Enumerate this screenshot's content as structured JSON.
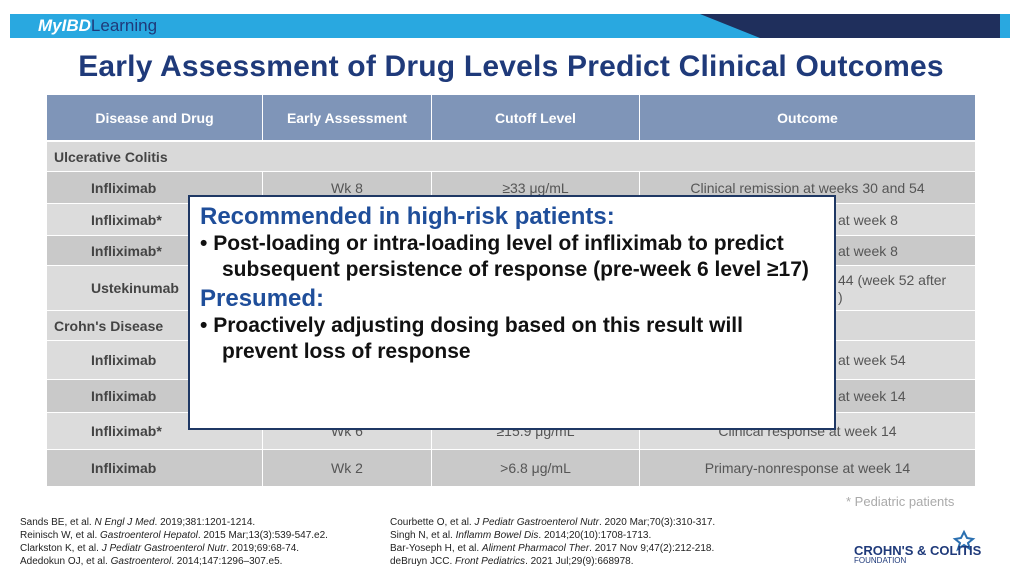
{
  "header": {
    "logo_a": "MyIBD",
    "logo_b": "Learning"
  },
  "title": "Early Assessment of Drug Levels Predict Clinical Outcomes",
  "table": {
    "columns": [
      "Disease and Drug",
      "Early Assessment",
      "Cutoff Level",
      "Outcome"
    ],
    "rows": [
      {
        "section": "Ulcerative Colitis"
      },
      {
        "drug": "Infliximab",
        "assessment": "Wk 8",
        "cutoff": "≥33 μg/mL",
        "outcome": "Clinical remission at weeks 30 and 54"
      },
      {
        "drug": "Infliximab*",
        "fragment": "at week 8"
      },
      {
        "drug": "Infliximab*",
        "fragment": "at week 8"
      },
      {
        "drug": "Ustekinumab",
        "fragment": "44 (week 52 after\n)"
      },
      {
        "section": "Crohn's Disease"
      },
      {
        "drug": "Infliximab",
        "fragment": "at week 54"
      },
      {
        "drug": "Infliximab",
        "fragment": "at week 14"
      },
      {
        "drug": "Infliximab*",
        "assessment": "Wk 6",
        "cutoff": "≥15.9 μg/mL",
        "outcome": "Clinical response at week 14"
      },
      {
        "drug": "Infliximab",
        "assessment": "Wk 2",
        "cutoff": ">6.8 μg/mL",
        "outcome": "Primary-nonresponse at week 14"
      }
    ]
  },
  "overlay": {
    "heading1": "Recommended in high-risk patients:",
    "bullets1": [
      "Post-loading or intra-loading level of infliximab to predict subsequent persistence of response (pre-week 6 level ≥17)"
    ],
    "heading2": "Presumed:",
    "bullets2": [
      "Proactively adjusting dosing based on this result will prevent loss of response"
    ]
  },
  "footnote": "* Pediatric patients",
  "references_left": [
    [
      "Sands BE, et al. ",
      "N Engl J Med",
      ". 2019;381:1201-1214."
    ],
    [
      "Reinisch W, et al. ",
      "Gastroenterol Hepatol",
      ". 2015 Mar;13(3):539-547.e2."
    ],
    [
      "Clarkston K, et al. ",
      "J Pediatr Gastroenterol Nutr",
      ". 2019;69:68-74."
    ],
    [
      "Adedokun OJ, et al. ",
      "Gastroenterol",
      ". 2014;147:1296–307.e5."
    ]
  ],
  "references_right": [
    [
      "Courbette O, et al. ",
      "J Pediatr Gastroenterol Nutr",
      ". 2020 Mar;70(3):310-317."
    ],
    [
      "Singh N, et al. ",
      "Inflamm Bowel Dis",
      ". 2014;20(10):1708-1713."
    ],
    [
      "Bar-Yoseph H, et al. ",
      "Aliment Pharmacol Ther",
      ". 2017 Nov 9;47(2):212-218."
    ],
    [
      "deBruyn JCC. ",
      "Front Pediatrics",
      ". 2021 Jul;29(9):668978."
    ]
  ],
  "foundation": {
    "name": "CROHN'S & COLITIS",
    "sub": "FOUNDATION"
  }
}
